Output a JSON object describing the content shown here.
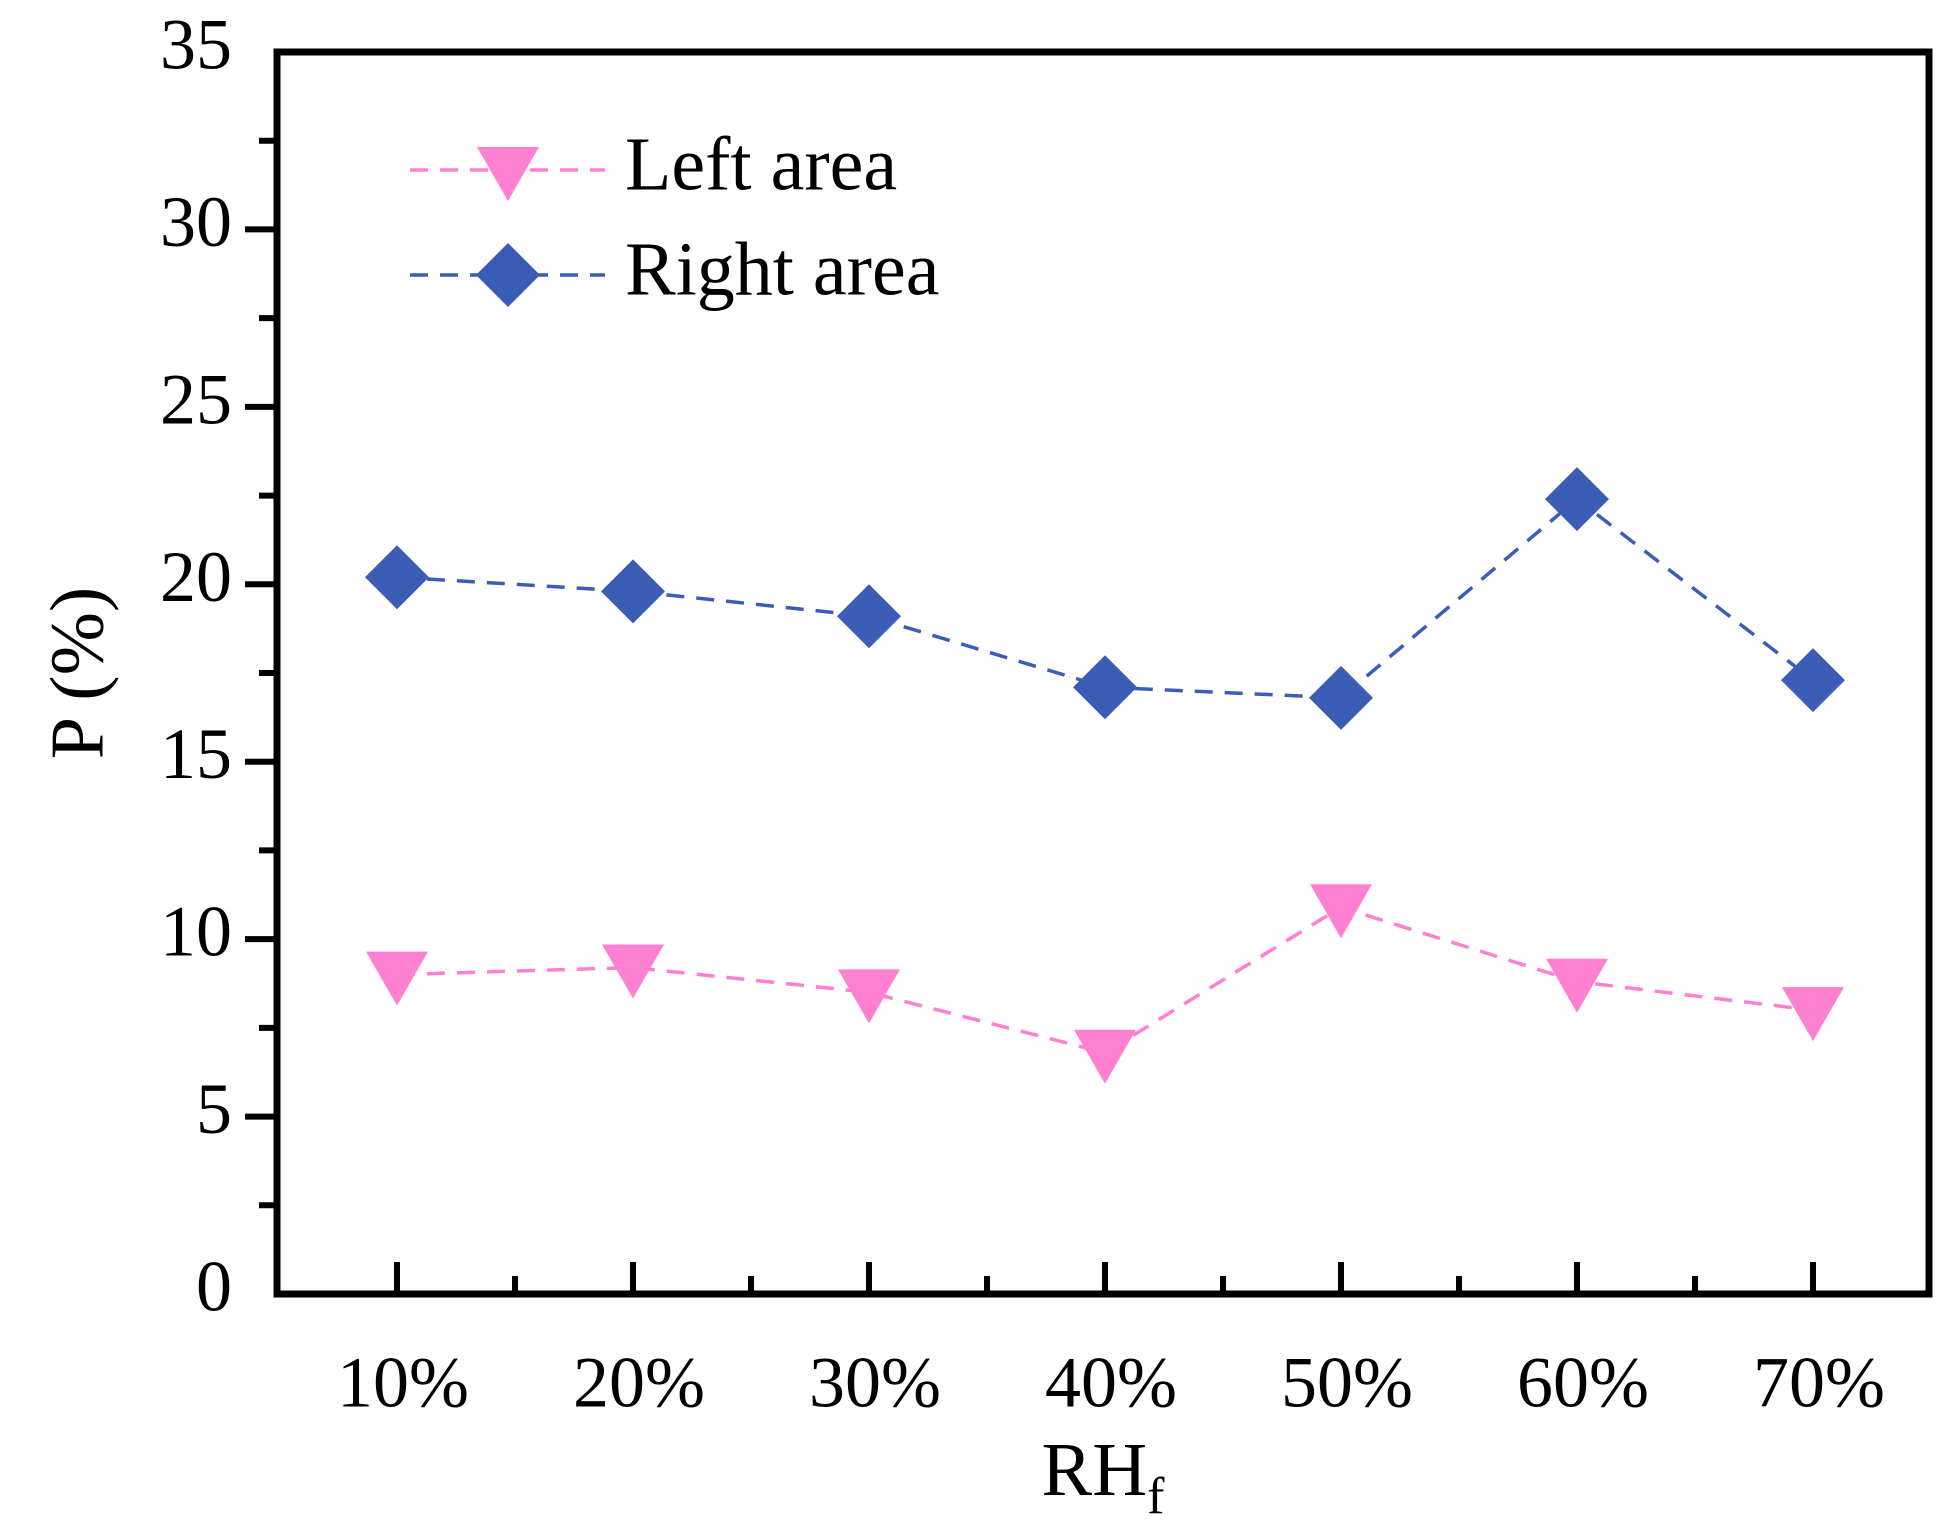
{
  "chart_data": {
    "type": "line",
    "categories": [
      "10%",
      "20%",
      "30%",
      "40%",
      "50%",
      "60%",
      "70%"
    ],
    "series": [
      {
        "name": "Left area",
        "marker": "triangle-down",
        "color": "#ff7fd0",
        "line_style": "dashed",
        "values": [
          9.0,
          9.2,
          8.5,
          6.8,
          10.9,
          8.8,
          8.0
        ]
      },
      {
        "name": "Right area",
        "marker": "diamond",
        "color": "#3b5db5",
        "line_style": "dashed",
        "values": [
          20.2,
          19.8,
          19.1,
          17.1,
          16.8,
          22.4,
          17.3
        ]
      }
    ],
    "title": "",
    "xlabel": "RH",
    "xlabel_subscript": "f",
    "ylabel": "P (%)",
    "ylim": [
      0,
      35
    ],
    "yticks": [
      "0",
      "5",
      "10",
      "15",
      "20",
      "25",
      "30",
      "35"
    ],
    "grid": false,
    "legend_position": "top-left"
  }
}
